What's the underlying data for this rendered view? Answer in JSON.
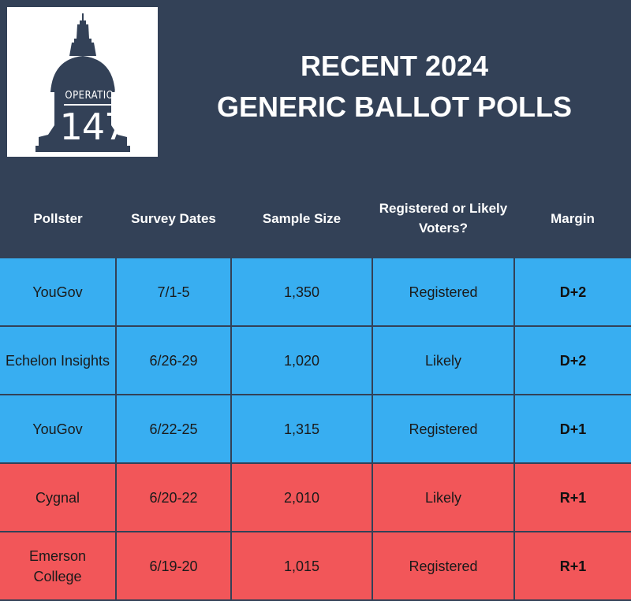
{
  "logo": {
    "line1": "OPERATION",
    "line2": "147"
  },
  "title": {
    "line1": "RECENT 2024",
    "line2": "GENERIC BALLOT POLLS"
  },
  "table": {
    "headers": {
      "pollster": "Pollster",
      "dates": "Survey Dates",
      "sample": "Sample Size",
      "voters": "Registered or Likely Voters?",
      "margin": "Margin"
    },
    "rows": [
      {
        "pollster": "YouGov",
        "dates": "7/1-5",
        "sample": "1,350",
        "voters": "Registered",
        "margin": "D+2",
        "party": "D"
      },
      {
        "pollster": "Echelon Insights",
        "dates": "6/26-29",
        "sample": "1,020",
        "voters": "Likely",
        "margin": "D+2",
        "party": "D"
      },
      {
        "pollster": "YouGov",
        "dates": "6/22-25",
        "sample": "1,315",
        "voters": "Registered",
        "margin": "D+1",
        "party": "D"
      },
      {
        "pollster": "Cygnal",
        "dates": "6/20-22",
        "sample": "2,010",
        "voters": "Likely",
        "margin": "R+1",
        "party": "R"
      },
      {
        "pollster": "Emerson College",
        "dates": "6/19-20",
        "sample": "1,015",
        "voters": "Registered",
        "margin": "R+1",
        "party": "R"
      }
    ]
  },
  "colors": {
    "background": "#334157",
    "dem": "#38aef1",
    "rep": "#f25659"
  }
}
